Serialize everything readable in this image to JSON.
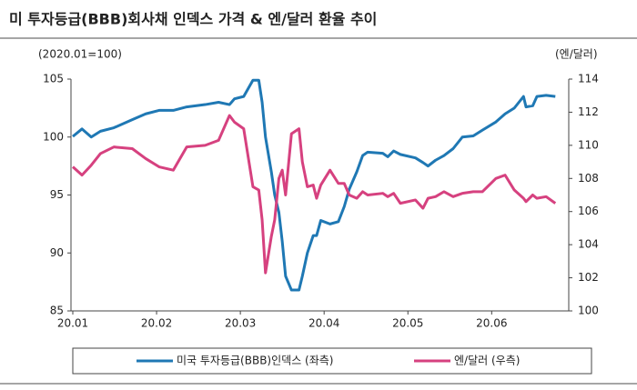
{
  "chart_data": {
    "type": "line",
    "title": "미 투자등급(BBB)회사채 인덱스 가격 & 엔/달러 환율 추이",
    "ylabel": "(2020.01=100)",
    "y2label": "(엔/달러)",
    "x": [
      0,
      0.11,
      0.22,
      0.33,
      0.49,
      0.71,
      0.87,
      1.03,
      1.2,
      1.36,
      1.58,
      1.74,
      1.87,
      1.93,
      2.04,
      2.15,
      2.22,
      2.26,
      2.3,
      2.37,
      2.41,
      2.46,
      2.5,
      2.54,
      2.61,
      2.7,
      2.74,
      2.8,
      2.87,
      2.91,
      2.96,
      3.07,
      3.17,
      3.24,
      3.3,
      3.39,
      3.46,
      3.52,
      3.7,
      3.76,
      3.83,
      3.91,
      4.09,
      4.18,
      4.24,
      4.33,
      4.43,
      4.54,
      4.65,
      4.78,
      4.89,
      5.05,
      5.16,
      5.27,
      5.38,
      5.41,
      5.49,
      5.54,
      5.65,
      5.76
    ],
    "xlim": [
      0,
      5.92
    ],
    "xticks": [
      {
        "value": 0,
        "label": "20.01"
      },
      {
        "value": 1,
        "label": "20.02"
      },
      {
        "value": 2,
        "label": "20.03"
      },
      {
        "value": 3,
        "label": "20.04"
      },
      {
        "value": 4,
        "label": "20.05"
      },
      {
        "value": 5,
        "label": "20.06"
      }
    ],
    "ylim": [
      85,
      105
    ],
    "yticks": [
      85,
      90,
      95,
      100,
      105
    ],
    "y2lim": [
      100,
      114
    ],
    "y2ticks": [
      100,
      102,
      104,
      106,
      108,
      110,
      112,
      114
    ],
    "series": [
      {
        "name": "미국 투자등급(BBB)인덱스 (좌측)",
        "color": "#1f78b4",
        "values": [
          100.05,
          100.7,
          100,
          100.5,
          100.8,
          101.5,
          102,
          102.3,
          102.3,
          102.6,
          102.8,
          103,
          102.8,
          103.3,
          103.5,
          104.9,
          104.9,
          103,
          100,
          97,
          95,
          93.5,
          91,
          88,
          86.8,
          86.8,
          88,
          90,
          91.5,
          91.5,
          92.8,
          92.5,
          92.7,
          94,
          95.5,
          97,
          98.4,
          98.7,
          98.6,
          98.3,
          98.8,
          98.5,
          98.2,
          97.8,
          97.5,
          98,
          98.4,
          99,
          100,
          100.1,
          100.6,
          101.3,
          102,
          102.5,
          103.5,
          102.6,
          102.7,
          103.5,
          103.6,
          103.5
        ]
      },
      {
        "name": "엔/달러 (우측)",
        "color": "#d6417f",
        "axis": "y2",
        "values": [
          108.7,
          108.2,
          108.8,
          109.5,
          109.9,
          109.8,
          109.2,
          108.7,
          108.5,
          109.9,
          110,
          110.3,
          111.8,
          111.4,
          111,
          107.5,
          107.3,
          105.5,
          102.3,
          104.5,
          105.5,
          108,
          108.5,
          107,
          110.7,
          111,
          109,
          107.5,
          107.6,
          106.8,
          107.6,
          108.5,
          107.7,
          107.7,
          107,
          106.8,
          107.2,
          107,
          107.1,
          106.9,
          107.1,
          106.5,
          106.7,
          106.2,
          106.8,
          106.9,
          107.2,
          106.9,
          107.1,
          107.2,
          107.2,
          108,
          108.2,
          107.3,
          106.8,
          106.6,
          107,
          106.8,
          106.9,
          106.5
        ]
      }
    ]
  }
}
